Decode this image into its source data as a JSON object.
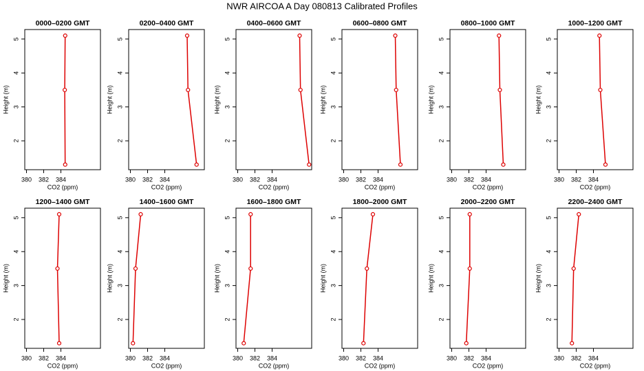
{
  "title": "NWR AIRCOA A  Day 080813  Calibrated Profiles",
  "chart_data": [
    {
      "type": "line",
      "title": "0000–0200 GMT",
      "xlabel": "CO2 (ppm)",
      "ylabel": "Height (m)",
      "x": [
        384.5,
        384.45,
        384.5
      ],
      "values": [
        1.3,
        3.5,
        5.1
      ],
      "color": "#dd0000",
      "xlim": [
        379.8,
        388.6
      ],
      "ylim": [
        1.15,
        5.28
      ],
      "xticks": [
        380,
        382,
        384
      ],
      "yticks": [
        2,
        3,
        4,
        5
      ]
    },
    {
      "type": "line",
      "title": "0200–0400 GMT",
      "xlabel": "CO2 (ppm)",
      "ylabel": "Height (m)",
      "x": [
        387.7,
        386.7,
        386.6
      ],
      "values": [
        1.3,
        3.5,
        5.1
      ],
      "color": "#dd0000",
      "xlim": [
        379.8,
        388.6
      ],
      "ylim": [
        1.15,
        5.28
      ],
      "xticks": [
        380,
        382,
        384
      ],
      "yticks": [
        2,
        3,
        4,
        5
      ]
    },
    {
      "type": "line",
      "title": "0400–0600 GMT",
      "xlabel": "CO2 (ppm)",
      "ylabel": "Height (m)",
      "x": [
        388.3,
        387.3,
        387.2
      ],
      "values": [
        1.3,
        3.5,
        5.1
      ],
      "color": "#dd0000",
      "xlim": [
        379.8,
        388.6
      ],
      "ylim": [
        1.15,
        5.28
      ],
      "xticks": [
        380,
        382,
        384
      ],
      "yticks": [
        2,
        3,
        4,
        5
      ]
    },
    {
      "type": "line",
      "title": "0600–0800 GMT",
      "xlabel": "CO2 (ppm)",
      "ylabel": "Height (m)",
      "x": [
        386.6,
        386.1,
        386.0
      ],
      "values": [
        1.3,
        3.5,
        5.1
      ],
      "color": "#dd0000",
      "xlim": [
        379.8,
        388.6
      ],
      "ylim": [
        1.15,
        5.28
      ],
      "xticks": [
        380,
        382,
        384
      ],
      "yticks": [
        2,
        3,
        4,
        5
      ]
    },
    {
      "type": "line",
      "title": "0800–1000 GMT",
      "xlabel": "CO2 (ppm)",
      "ylabel": "Height (m)",
      "x": [
        386.0,
        385.6,
        385.5
      ],
      "values": [
        1.3,
        3.5,
        5.1
      ],
      "color": "#dd0000",
      "xlim": [
        379.8,
        388.6
      ],
      "ylim": [
        1.15,
        5.28
      ],
      "xticks": [
        380,
        382,
        384
      ],
      "yticks": [
        2,
        3,
        4,
        5
      ]
    },
    {
      "type": "line",
      "title": "1000–1200 GMT",
      "xlabel": "CO2 (ppm)",
      "ylabel": "Height (m)",
      "x": [
        385.4,
        384.8,
        384.7
      ],
      "values": [
        1.3,
        3.5,
        5.1
      ],
      "color": "#dd0000",
      "xlim": [
        379.8,
        388.6
      ],
      "ylim": [
        1.15,
        5.28
      ],
      "xticks": [
        380,
        382,
        384
      ],
      "yticks": [
        2,
        3,
        4,
        5
      ]
    },
    {
      "type": "line",
      "title": "1200–1400 GMT",
      "xlabel": "CO2 (ppm)",
      "ylabel": "Height (m)",
      "x": [
        383.8,
        383.6,
        383.8
      ],
      "values": [
        1.3,
        3.5,
        5.1
      ],
      "color": "#dd0000",
      "xlim": [
        379.8,
        388.6
      ],
      "ylim": [
        1.15,
        5.28
      ],
      "xticks": [
        380,
        382,
        384
      ],
      "yticks": [
        2,
        3,
        4,
        5
      ]
    },
    {
      "type": "line",
      "title": "1400–1600 GMT",
      "xlabel": "CO2 (ppm)",
      "ylabel": "Height (m)",
      "x": [
        380.3,
        380.6,
        381.2
      ],
      "values": [
        1.3,
        3.5,
        5.1
      ],
      "color": "#dd0000",
      "xlim": [
        379.8,
        388.6
      ],
      "ylim": [
        1.15,
        5.28
      ],
      "xticks": [
        380,
        382,
        384
      ],
      "yticks": [
        2,
        3,
        4,
        5
      ]
    },
    {
      "type": "line",
      "title": "1600–1800 GMT",
      "xlabel": "CO2 (ppm)",
      "ylabel": "Height (m)",
      "x": [
        380.7,
        381.5,
        381.5
      ],
      "values": [
        1.3,
        3.5,
        5.1
      ],
      "color": "#dd0000",
      "xlim": [
        379.8,
        388.6
      ],
      "ylim": [
        1.15,
        5.28
      ],
      "xticks": [
        380,
        382,
        384
      ],
      "yticks": [
        2,
        3,
        4,
        5
      ]
    },
    {
      "type": "line",
      "title": "1800–2000 GMT",
      "xlabel": "CO2 (ppm)",
      "ylabel": "Height (m)",
      "x": [
        382.3,
        382.7,
        383.4
      ],
      "values": [
        1.3,
        3.5,
        5.1
      ],
      "color": "#dd0000",
      "xlim": [
        379.8,
        388.6
      ],
      "ylim": [
        1.15,
        5.28
      ],
      "xticks": [
        380,
        382,
        384
      ],
      "yticks": [
        2,
        3,
        4,
        5
      ]
    },
    {
      "type": "line",
      "title": "2000–2200 GMT",
      "xlabel": "CO2 (ppm)",
      "ylabel": "Height (m)",
      "x": [
        381.7,
        382.1,
        382.1
      ],
      "values": [
        1.3,
        3.5,
        5.1
      ],
      "color": "#dd0000",
      "xlim": [
        379.8,
        388.6
      ],
      "ylim": [
        1.15,
        5.28
      ],
      "xticks": [
        380,
        382,
        384
      ],
      "yticks": [
        2,
        3,
        4,
        5
      ]
    },
    {
      "type": "line",
      "title": "2200–2400 GMT",
      "xlabel": "CO2 (ppm)",
      "ylabel": "Height (m)",
      "x": [
        381.5,
        381.7,
        382.3
      ],
      "values": [
        1.3,
        3.5,
        5.1
      ],
      "color": "#dd0000",
      "xlim": [
        379.8,
        388.6
      ],
      "ylim": [
        1.15,
        5.28
      ],
      "xticks": [
        380,
        382,
        384
      ],
      "yticks": [
        2,
        3,
        4,
        5
      ]
    }
  ]
}
